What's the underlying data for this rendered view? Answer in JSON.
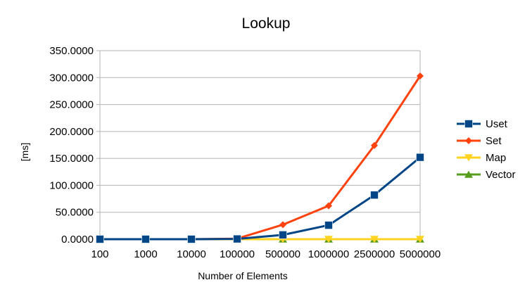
{
  "chart_data": {
    "type": "line",
    "title": "Lookup",
    "xlabel": "Number of Elements",
    "ylabel": "[ms]",
    "categories": [
      "100",
      "1000",
      "10000",
      "100000",
      "500000",
      "1000000",
      "2500000",
      "5000000"
    ],
    "ylim": [
      0,
      350
    ],
    "yticks": [
      "0.0000",
      "50.0000",
      "100.0000",
      "150.0000",
      "200.0000",
      "250.0000",
      "300.0000",
      "350.0000"
    ],
    "grid": true,
    "legend_position": "right",
    "series": [
      {
        "name": "Uset",
        "color": "#004586",
        "marker": "square",
        "values": [
          0,
          0,
          0,
          0.5,
          8,
          26,
          82,
          152
        ]
      },
      {
        "name": "Set",
        "color": "#ff420e",
        "marker": "diamond",
        "values": [
          0,
          0,
          0,
          1,
          27,
          62,
          174,
          303
        ]
      },
      {
        "name": "Map",
        "color": "#ffd320",
        "marker": "triangle-down",
        "values": [
          0,
          0,
          0,
          0,
          0,
          0,
          0,
          0
        ]
      },
      {
        "name": "Vector",
        "color": "#579d1c",
        "marker": "triangle-up",
        "values": [
          0,
          0,
          0,
          0,
          0,
          0,
          0,
          0
        ]
      }
    ]
  }
}
